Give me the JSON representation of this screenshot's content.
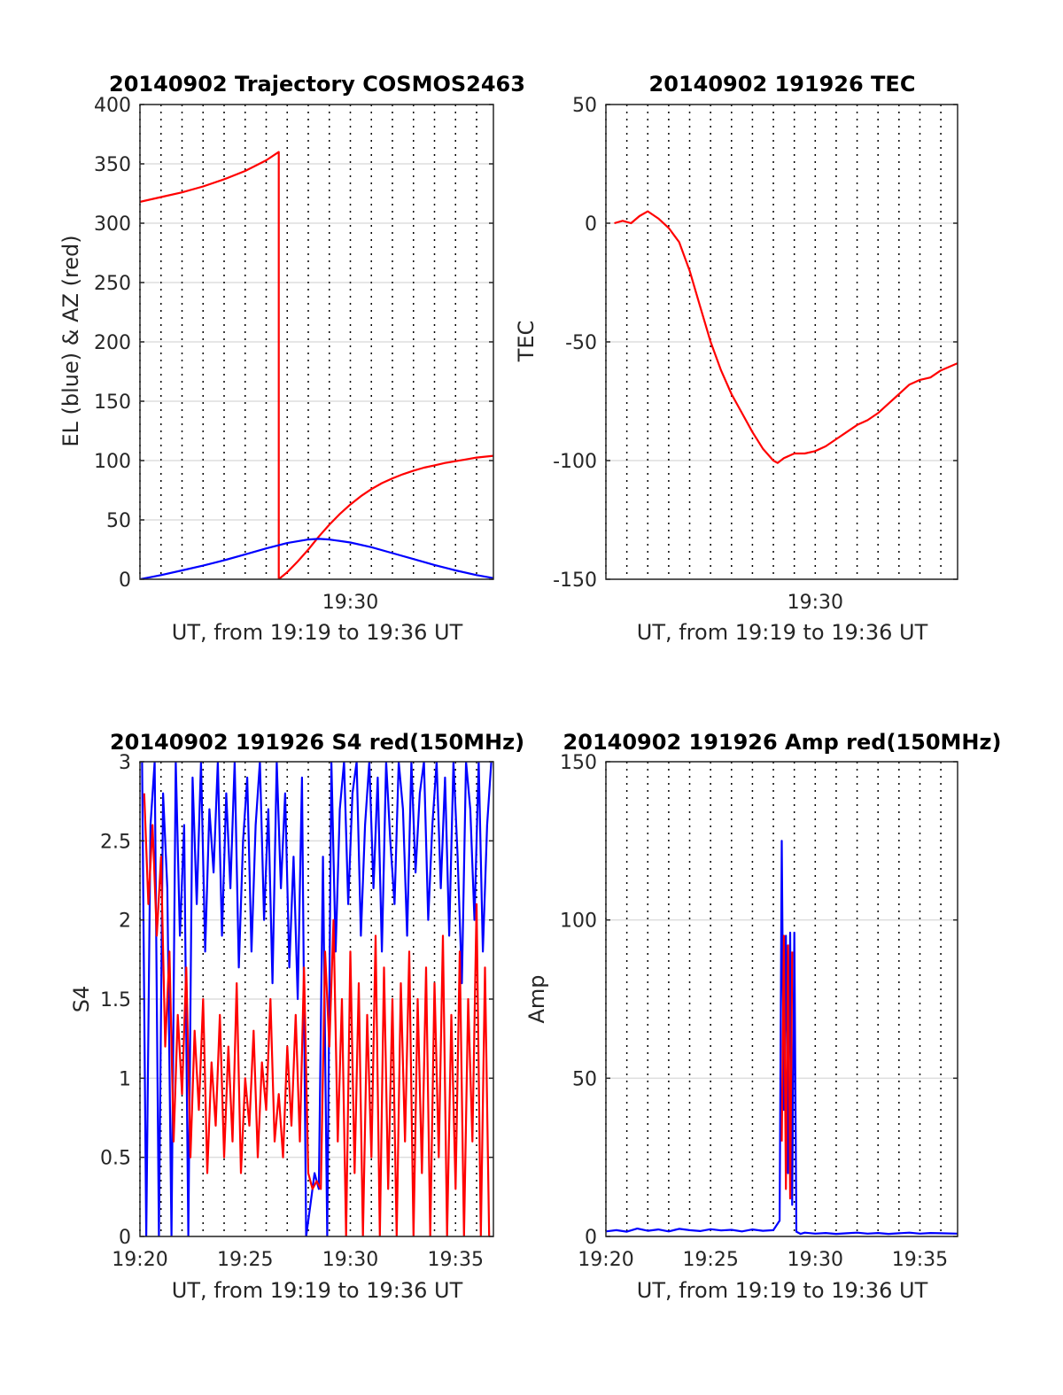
{
  "figure": {
    "date": "20140902",
    "colors": {
      "el": "#0000ff",
      "az": "#ff0000",
      "s4_150": "#ff0000",
      "s4_other": "#0000ff",
      "amp_150": "#ff0000",
      "amp_other": "#0000ff",
      "gridline": "#dddddd",
      "minorgrid": "#000000"
    }
  },
  "chart_data": [
    {
      "id": "trajectory",
      "type": "line",
      "title": "20140902 Trajectory COSMOS2463",
      "xlabel": "UT, from 19:19 to 19:36 UT",
      "ylabel": "EL (blue) & AZ (red)",
      "xlim_minutes_of_day": [
        1160,
        1176.8
      ],
      "ylim": [
        0,
        400
      ],
      "yticks": [
        0,
        50,
        100,
        150,
        200,
        250,
        300,
        350,
        400
      ],
      "ytick_labels": [
        "0",
        "50",
        "100",
        "150",
        "200",
        "250",
        "300",
        "350",
        "400"
      ],
      "xticks": [
        1170
      ],
      "xtick_labels": [
        "19:30"
      ],
      "grid": true,
      "series": [
        {
          "color": "#ff0000",
          "x": [
            1160.0,
            1161.0,
            1162.0,
            1163.0,
            1164.0,
            1165.0,
            1166.0,
            1166.6,
            1166.6,
            1167.0,
            1167.5,
            1168.0,
            1168.5,
            1169.0,
            1169.5,
            1170.0,
            1170.5,
            1171.0,
            1171.5,
            1172.0,
            1172.5,
            1173.0,
            1173.5,
            1174.0,
            1174.5,
            1175.0,
            1175.5,
            1176.0,
            1176.8
          ],
          "y": [
            318,
            322,
            326,
            331,
            337,
            344,
            353,
            360,
            0,
            6,
            15,
            25,
            36,
            46,
            55,
            63,
            70,
            76,
            81,
            85,
            88.5,
            91.5,
            94,
            96,
            98,
            99.5,
            101,
            102.5,
            104
          ]
        },
        {
          "color": "#0000ff",
          "x": [
            1160.0,
            1161.0,
            1162.0,
            1163.0,
            1164.0,
            1165.0,
            1166.0,
            1167.0,
            1168.0,
            1168.5,
            1169.0,
            1170.0,
            1171.0,
            1172.0,
            1173.0,
            1174.0,
            1175.0,
            1176.0,
            1176.8
          ],
          "y": [
            0,
            3.5,
            7.5,
            11.5,
            16,
            21,
            26,
            30.5,
            33.5,
            34,
            33.5,
            31,
            27,
            22,
            17,
            12,
            7.5,
            3.5,
            1
          ]
        }
      ]
    },
    {
      "id": "tec",
      "type": "line",
      "title": "20140902 191926 TEC",
      "xlabel": "UT, from 19:19 to 19:36 UT",
      "ylabel": "TEC",
      "xlim_minutes_of_day": [
        1160,
        1176.8
      ],
      "ylim": [
        -150,
        50
      ],
      "yticks": [
        -150,
        -100,
        -50,
        0,
        50
      ],
      "ytick_labels": [
        "-150",
        "-100",
        "-50",
        "0",
        "50"
      ],
      "xticks": [
        1170
      ],
      "xtick_labels": [
        "19:30"
      ],
      "grid": true,
      "series": [
        {
          "color": "#ff0000",
          "x": [
            1160.4,
            1160.8,
            1161.2,
            1161.6,
            1162.0,
            1162.5,
            1163.0,
            1163.5,
            1164.0,
            1164.5,
            1165.0,
            1165.5,
            1166.0,
            1166.5,
            1167.0,
            1167.5,
            1168.0,
            1168.2,
            1168.5,
            1169.0,
            1169.5,
            1170.0,
            1170.5,
            1171.0,
            1171.5,
            1172.0,
            1172.5,
            1173.0,
            1173.5,
            1174.0,
            1174.5,
            1175.0,
            1175.5,
            1176.0,
            1176.8
          ],
          "y": [
            0,
            1,
            0,
            3,
            5,
            2,
            -2,
            -8,
            -20,
            -35,
            -50,
            -62,
            -72,
            -80,
            -88,
            -95,
            -100,
            -101,
            -99,
            -97,
            -97,
            -96,
            -94,
            -91,
            -88,
            -85,
            -83,
            -80,
            -76,
            -72,
            -68,
            -66,
            -65,
            -62,
            -59
          ]
        }
      ]
    },
    {
      "id": "s4",
      "type": "line",
      "title": "20140902 191926 S4 red(150MHz)",
      "xlabel": "UT, from 19:19 to 19:36 UT",
      "ylabel": "S4",
      "xlim_minutes_of_day": [
        1160,
        1176.8
      ],
      "ylim": [
        0,
        3
      ],
      "yticks": [
        0,
        0.5,
        1,
        1.5,
        2,
        2.5,
        3
      ],
      "ytick_labels": [
        "0",
        "0.5",
        "1",
        "1.5",
        "2",
        "2.5",
        "3"
      ],
      "xticks": [
        1160,
        1165,
        1170,
        1175
      ],
      "xtick_labels": [
        "19:20",
        "19:25",
        "19:30",
        "19:35"
      ],
      "grid": true,
      "series": [
        {
          "color": "#0000ff",
          "x": [
            1160.1,
            1160.3,
            1160.5,
            1160.7,
            1160.9,
            1161.1,
            1161.3,
            1161.5,
            1161.7,
            1161.9,
            1162.1,
            1162.3,
            1162.5,
            1162.7,
            1162.9,
            1163.1,
            1163.3,
            1163.5,
            1163.7,
            1163.9,
            1164.1,
            1164.3,
            1164.5,
            1164.7,
            1164.9,
            1165.1,
            1165.3,
            1165.5,
            1165.7,
            1165.9,
            1166.1,
            1166.3,
            1166.5,
            1166.7,
            1166.9,
            1167.1,
            1167.3,
            1167.5,
            1167.7,
            1167.9,
            1168.1,
            1168.3,
            1168.5,
            1168.7,
            1168.9,
            1169.1,
            1169.3,
            1169.5,
            1169.7,
            1169.9,
            1170.1,
            1170.3,
            1170.5,
            1170.7,
            1170.9,
            1171.1,
            1171.3,
            1171.5,
            1171.7,
            1171.9,
            1172.1,
            1172.3,
            1172.5,
            1172.7,
            1172.9,
            1173.1,
            1173.3,
            1173.5,
            1173.7,
            1173.9,
            1174.1,
            1174.3,
            1174.5,
            1174.7,
            1174.9,
            1175.1,
            1175.3,
            1175.5,
            1175.7,
            1175.9,
            1176.1,
            1176.3,
            1176.5,
            1176.7
          ],
          "y": [
            3,
            0,
            2.6,
            3,
            0,
            2.8,
            2.2,
            0,
            3,
            1.9,
            2.6,
            0,
            2.9,
            2.1,
            3,
            1.8,
            2.7,
            2.3,
            3,
            1.9,
            2.8,
            2.2,
            3,
            1.7,
            2.5,
            2.9,
            1.8,
            2.6,
            3,
            2.0,
            2.7,
            1.6,
            3,
            2.2,
            2.8,
            1.7,
            2.4,
            1.5,
            2.9,
            0,
            0.2,
            0.4,
            0.3,
            2.4,
            0,
            3,
            1.8,
            2.7,
            3,
            2.1,
            2.8,
            3,
            1.9,
            2.6,
            3,
            2.2,
            2.9,
            1.8,
            3,
            2.5,
            2.1,
            3,
            2.7,
            1.9,
            3,
            2.3,
            2.8,
            3,
            2.0,
            2.6,
            3,
            2.2,
            2.9,
            1.9,
            3,
            2.4,
            1.6,
            3,
            2.7,
            2.0,
            3,
            1.8,
            2.6,
            3
          ]
        },
        {
          "color": "#ff0000",
          "x": [
            1160.2,
            1160.4,
            1160.6,
            1160.8,
            1161.0,
            1161.2,
            1161.4,
            1161.6,
            1161.8,
            1162.0,
            1162.2,
            1162.4,
            1162.6,
            1162.8,
            1163.0,
            1163.2,
            1163.4,
            1163.6,
            1163.8,
            1164.0,
            1164.2,
            1164.4,
            1164.6,
            1164.8,
            1165.0,
            1165.2,
            1165.4,
            1165.6,
            1165.8,
            1166.0,
            1166.2,
            1166.4,
            1166.6,
            1166.8,
            1167.0,
            1167.2,
            1167.4,
            1167.6,
            1167.8,
            1168.0,
            1168.2,
            1168.4,
            1168.6,
            1168.8,
            1169.0,
            1169.2,
            1169.4,
            1169.6,
            1169.8,
            1170.0,
            1170.2,
            1170.4,
            1170.6,
            1170.8,
            1171.0,
            1171.2,
            1171.4,
            1171.6,
            1171.8,
            1172.0,
            1172.2,
            1172.4,
            1172.6,
            1172.8,
            1173.0,
            1173.2,
            1173.4,
            1173.6,
            1173.8,
            1174.0,
            1174.2,
            1174.4,
            1174.6,
            1174.8,
            1175.0,
            1175.2,
            1175.4,
            1175.6,
            1175.8,
            1176.0,
            1176.2,
            1176.4,
            1176.6
          ],
          "y": [
            2.8,
            2.1,
            2.6,
            1.9,
            2.4,
            1.2,
            1.8,
            0.6,
            1.4,
            0.9,
            1.7,
            0.5,
            1.3,
            0.8,
            1.5,
            0.4,
            1.1,
            0.7,
            1.4,
            0.5,
            1.2,
            0.6,
            1.6,
            0.4,
            1.0,
            0.7,
            1.3,
            0.5,
            1.1,
            0.8,
            1.5,
            0.6,
            0.9,
            0.5,
            1.2,
            0.7,
            1.4,
            0.6,
            1.7,
            0.4,
            0.3,
            0.35,
            0.3,
            1.8,
            1.2,
            2.0,
            0.6,
            1.5,
            0,
            1.8,
            0.4,
            1.6,
            0,
            1.4,
            0.5,
            1.9,
            0,
            1.7,
            0.3,
            1.5,
            0,
            1.6,
            0.6,
            1.8,
            0,
            1.5,
            0.4,
            1.7,
            0,
            1.6,
            0.5,
            1.9,
            0,
            1.4,
            0.3,
            1.8,
            0,
            1.5,
            0.6,
            2.1,
            0,
            1.7,
            0
          ]
        }
      ]
    },
    {
      "id": "amp",
      "type": "line",
      "title": "20140902 191926 Amp red(150MHz)",
      "xlabel": "UT, from 19:19 to 19:36 UT",
      "ylabel": "Amp",
      "xlim_minutes_of_day": [
        1160,
        1176.8
      ],
      "ylim": [
        0,
        150
      ],
      "yticks": [
        0,
        50,
        100,
        150
      ],
      "ytick_labels": [
        "0",
        "50",
        "100",
        "150"
      ],
      "xticks": [
        1160,
        1165,
        1170,
        1175
      ],
      "xtick_labels": [
        "19:20",
        "19:25",
        "19:30",
        "19:35"
      ],
      "grid": true,
      "series": [
        {
          "color": "#0000ff",
          "x": [
            1159.9,
            1160.5,
            1161.0,
            1161.5,
            1162.0,
            1162.5,
            1163.0,
            1163.5,
            1164.0,
            1164.5,
            1165.0,
            1165.5,
            1166.0,
            1166.5,
            1167.0,
            1167.5,
            1168.0,
            1168.3,
            1168.4,
            1168.5,
            1168.6,
            1168.7,
            1168.8,
            1168.9,
            1169.0,
            1169.1,
            1169.3,
            1169.5,
            1170.0,
            1170.5,
            1171.0,
            1171.5,
            1172.0,
            1172.5,
            1173.0,
            1173.5,
            1174.0,
            1174.5,
            1175.0,
            1175.5,
            1176.0,
            1176.8
          ],
          "y": [
            1.5,
            2.0,
            1.5,
            2.5,
            1.8,
            2.2,
            1.6,
            2.4,
            2.0,
            1.7,
            2.3,
            1.9,
            2.1,
            1.6,
            2.2,
            1.8,
            2.0,
            5.0,
            125,
            40,
            95,
            20,
            96,
            10,
            96,
            1.5,
            0.8,
            1.2,
            0.9,
            1.1,
            0.8,
            1.0,
            1.2,
            0.9,
            1.1,
            0.8,
            1.0,
            1.2,
            0.9,
            1.1,
            1.0,
            0.9
          ]
        },
        {
          "color": "#ff0000",
          "x": [
            1168.4,
            1168.5,
            1168.6,
            1168.7,
            1168.8,
            1168.9
          ],
          "y": [
            30,
            95,
            15,
            92,
            12,
            90
          ]
        }
      ]
    }
  ]
}
